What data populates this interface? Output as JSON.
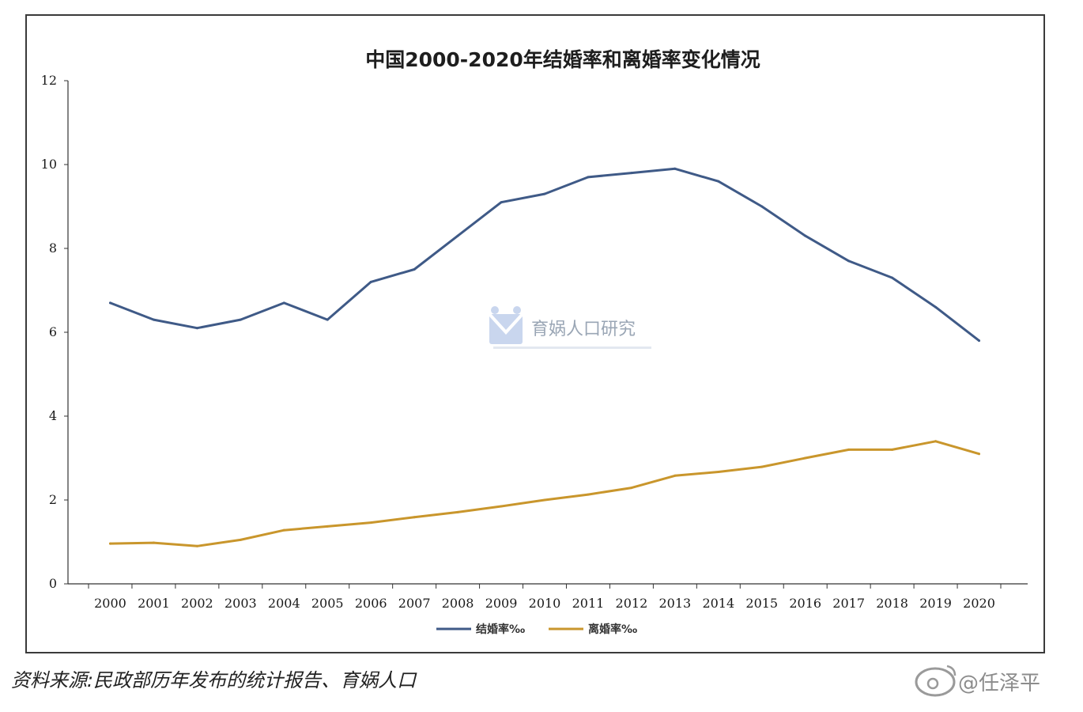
{
  "chart_data": {
    "type": "line",
    "title": "中国2000-2020年结婚率和离婚率变化情况",
    "categories": [
      "2000",
      "2001",
      "2002",
      "2003",
      "2004",
      "2005",
      "2006",
      "2007",
      "2008",
      "2009",
      "2010",
      "2011",
      "2012",
      "2013",
      "2014",
      "2015",
      "2016",
      "2017",
      "2018",
      "2019",
      "2020"
    ],
    "ylim": [
      0,
      12
    ],
    "yticks": [
      "0",
      "2",
      "4",
      "6",
      "8",
      "10",
      "12"
    ],
    "series": [
      {
        "name": "结婚率‰",
        "color": "#3f5a87",
        "values": [
          6.7,
          6.3,
          6.1,
          6.3,
          6.7,
          6.3,
          7.2,
          7.5,
          8.3,
          9.1,
          9.3,
          9.7,
          9.8,
          9.9,
          9.6,
          9.0,
          8.3,
          7.7,
          7.3,
          6.6,
          5.8
        ]
      },
      {
        "name": "离婚率‰",
        "color": "#c9962c",
        "values": [
          0.96,
          0.98,
          0.9,
          1.05,
          1.28,
          1.37,
          1.46,
          1.59,
          1.71,
          1.85,
          2.0,
          2.13,
          2.29,
          2.58,
          2.67,
          2.79,
          3.0,
          3.2,
          3.2,
          3.4,
          3.1
        ]
      }
    ],
    "grid": false,
    "legend": "bottom"
  },
  "watermark": "育娲人口研究",
  "source_note": "资料来源:民政部历年发布的统计报告、育娲人口",
  "weibo_handle": "@任泽平"
}
